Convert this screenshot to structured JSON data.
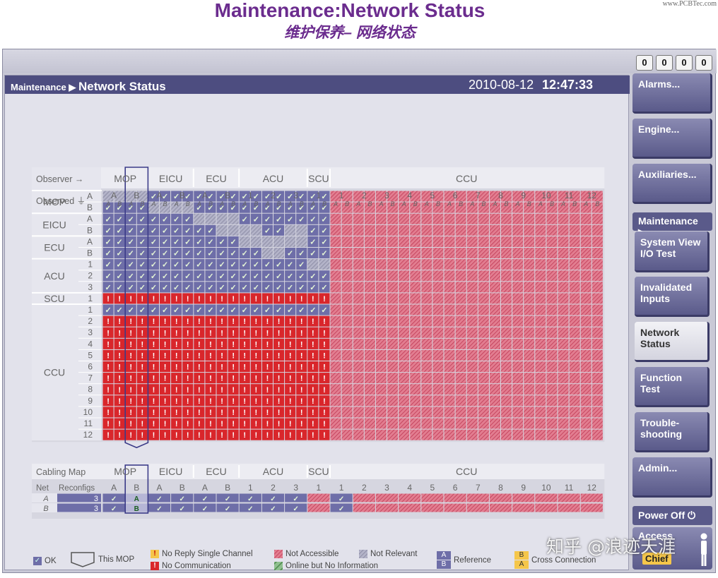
{
  "slide": {
    "title": "Maintenance:Network Status",
    "subtitle": "维护保养– 网络状态",
    "watermark_top": "www.PCBTec.com"
  },
  "counters": [
    "0",
    "0",
    "0",
    "0"
  ],
  "header": {
    "crumb_parent": "Maintenance",
    "crumb_current": "Network Status",
    "date": "2010-08-12",
    "time": "12:47:33"
  },
  "sidebar": {
    "alarms": "Alarms...",
    "engine": "Engine...",
    "auxiliaries": "Auxiliaries...",
    "maintenance": "Maintenance",
    "system_view": "System View",
    "io_test": "I/O Test",
    "invalidated": "Invalidated Inputs",
    "network_status": "Network Status",
    "function_test": "Function Test",
    "troubleshooting": "Trouble-shooting",
    "admin": "Admin...",
    "power_off": "Power Off",
    "access": "Access",
    "chief": "Chief"
  },
  "matrix": {
    "observer_label": "Observer",
    "observed_label": "Observed",
    "groups": [
      {
        "name": "MOP",
        "units": [
          "A",
          "B"
        ]
      },
      {
        "name": "EICU",
        "units": [
          "A",
          "B"
        ]
      },
      {
        "name": "ECU",
        "units": [
          "A",
          "B"
        ]
      },
      {
        "name": "ACU",
        "units": [
          "1",
          "2",
          "3"
        ]
      },
      {
        "name": "SCU",
        "units": [
          "1"
        ]
      },
      {
        "name": "CCU",
        "units": [
          "1",
          "2",
          "3",
          "4",
          "5",
          "6",
          "7",
          "8",
          "9",
          "10",
          "11",
          "12"
        ]
      }
    ],
    "channels": [
      "A",
      "B"
    ],
    "selected_column": "MOP B",
    "rows": [
      {
        "group": "MOP",
        "unit": "A",
        "pattern": "rr cc cc cc ccc x c"
      },
      {
        "group": "MOP",
        "unit": "B",
        "pattern": "cc rr cc cc ccc x c"
      },
      {
        "group": "EICU",
        "unit": "A",
        "pattern": "cc cc rr cc ccc x c"
      },
      {
        "group": "EICU",
        "unit": "B",
        "pattern": "cc cc cr rc ccc x c"
      },
      {
        "group": "ECU",
        "unit": "A",
        "pattern": "cc cc cc rr ccc x c"
      },
      {
        "group": "ECU",
        "unit": "B",
        "pattern": "cc cc cc cr ccc x c"
      },
      {
        "group": "ACU",
        "unit": "1",
        "pattern": "cc cc cc cc rcc x c"
      },
      {
        "group": "ACU",
        "unit": "2",
        "pattern": "cc cc cc cc crc x c"
      },
      {
        "group": "ACU",
        "unit": "3",
        "pattern": "cc cc cc cc ccr x c"
      },
      {
        "group": "SCU",
        "unit": "1",
        "pattern": "ee ee ee ee eee x e"
      },
      {
        "group": "CCU",
        "unit": "1",
        "pattern": "cc cc cc cc ccc x r"
      },
      {
        "group": "CCU",
        "unit": "2",
        "pattern": "ee ee ee ee eee x e"
      },
      {
        "group": "CCU",
        "unit": "3",
        "pattern": "ee ee ee ee eee x e"
      },
      {
        "group": "CCU",
        "unit": "4",
        "pattern": "ee ee ee ee eee x e"
      },
      {
        "group": "CCU",
        "unit": "5",
        "pattern": "ee ee ee ee eee x e"
      },
      {
        "group": "CCU",
        "unit": "6",
        "pattern": "ee ee ee ee eee x e"
      },
      {
        "group": "CCU",
        "unit": "7",
        "pattern": "ee ee ee ee eee x e"
      },
      {
        "group": "CCU",
        "unit": "8",
        "pattern": "ee ee ee ee eee x e"
      },
      {
        "group": "CCU",
        "unit": "9",
        "pattern": "ee ee ee ee eee x e"
      },
      {
        "group": "CCU",
        "unit": "10",
        "pattern": "ee ee ee ee eee x e"
      },
      {
        "group": "CCU",
        "unit": "11",
        "pattern": "ee ee ee ee eee x e"
      },
      {
        "group": "CCU",
        "unit": "12",
        "pattern": "ee ee ee ee eee x e"
      }
    ]
  },
  "cabling": {
    "title": "Cabling Map",
    "net_label": "Net",
    "reconfigs_label": "Reconfigs",
    "rows": [
      {
        "net": "A",
        "reconfigs": "3",
        "cells": [
          "✓",
          "A",
          "✓",
          "✓",
          "✓",
          "✓",
          "✓",
          "✓",
          "✓",
          "x",
          "✓"
        ]
      },
      {
        "net": "B",
        "reconfigs": "3",
        "cells": [
          "✓",
          "B",
          "✓",
          "✓",
          "✓",
          "✓",
          "✓",
          "✓",
          "✓",
          "x",
          "✓"
        ]
      }
    ]
  },
  "legend": {
    "ok": "OK",
    "this_mop": "This MOP",
    "no_reply": "No Reply Single Channel",
    "no_comm": "No Communication",
    "not_accessible": "Not Accessible",
    "online_no_info": "Online but No Information",
    "not_relevant": "Not Relevant",
    "reference": "Reference",
    "cross_connection": "Cross Connection",
    "ref_a": "A",
    "ref_b": "B"
  },
  "colors": {
    "ok": "#6e6ea8",
    "error": "#d9262b",
    "not_accessible": "#d96a80",
    "not_relevant": "#9b9bb5",
    "header_bar": "#4d4d80",
    "title": "#6b2c8e"
  }
}
